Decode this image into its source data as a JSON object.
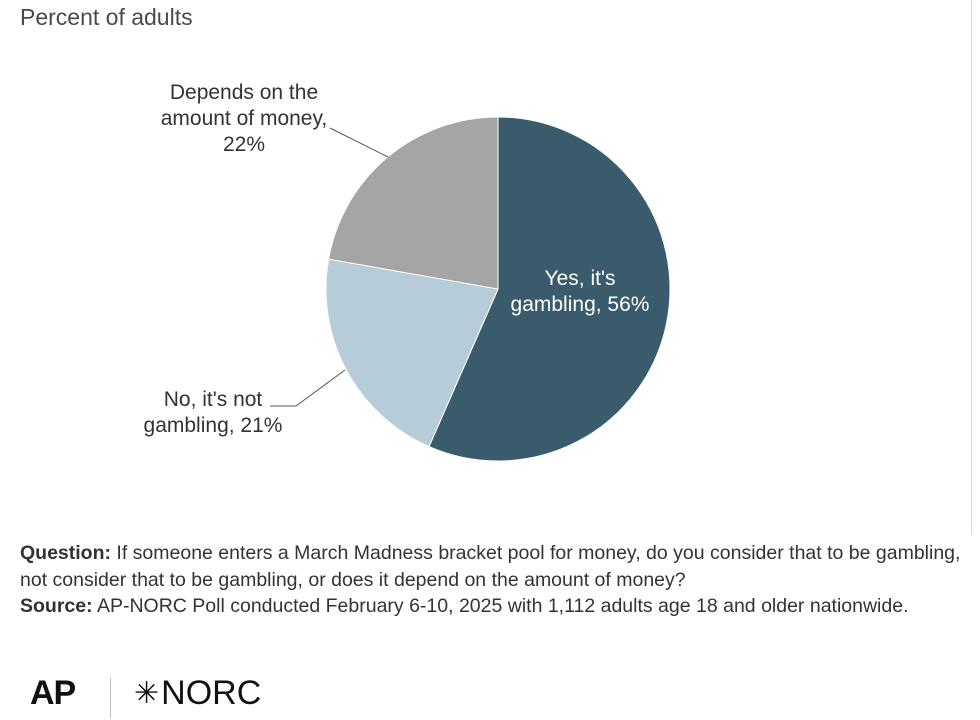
{
  "chart_data": {
    "type": "pie",
    "subtitle": "Percent of adults",
    "slices": [
      {
        "label_lines": [
          "Yes, it's",
          "gambling, 56%"
        ],
        "value": 56,
        "color": "#395b6b",
        "label_position": "inside"
      },
      {
        "label_lines": [
          "No, it's not",
          "gambling, 21%"
        ],
        "value": 21,
        "color": "#b6ccd8",
        "label_position": "outside-left"
      },
      {
        "label_lines": [
          "Depends on the",
          "amount of money,",
          "22%"
        ],
        "value": 22,
        "color": "#a5a5a5",
        "label_position": "outside-top-left"
      }
    ]
  },
  "notes": {
    "question_label": "Question:",
    "question_text": " If someone enters a March Madness bracket pool for money, do you consider that to be gambling, not consider that to be gambling, or does it depend on the amount of money?",
    "source_label": "Source:",
    "source_text": " AP-NORC Poll conducted February 6-10, 2025 with 1,112 adults age 18 and older nationwide."
  },
  "logos": {
    "ap": "AP",
    "norc_star": "✳",
    "norc": "NORC"
  }
}
